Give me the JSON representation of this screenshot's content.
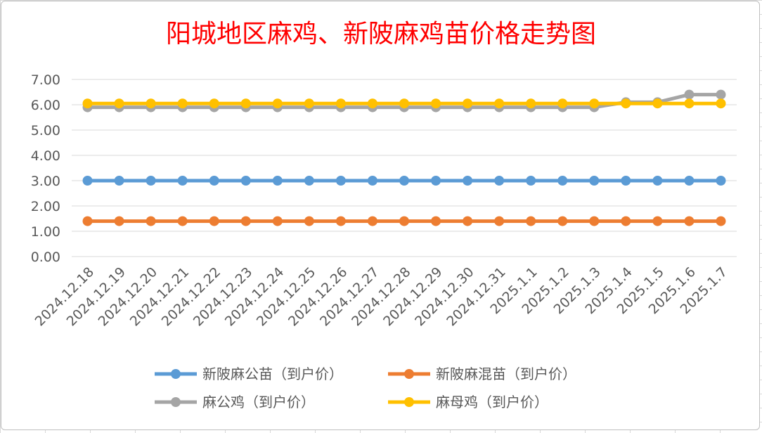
{
  "chart_data": {
    "type": "line",
    "title": "阳城地区麻鸡、新陂麻鸡苗价格走势图",
    "title_color": "#ff0000",
    "categories": [
      "2024.12.18",
      "2024.12.19",
      "2024.12.20",
      "2024.12.21",
      "2024.12.22",
      "2024.12.23",
      "2024.12.24",
      "2024.12.25",
      "2024.12.26",
      "2024.12.27",
      "2024.12.28",
      "2024.12.29",
      "2024.12.30",
      "2024.12.31",
      "2025.1.1",
      "2025.1.2",
      "2025.1.3",
      "2025.1.4",
      "2025.1.5",
      "2025.1.6",
      "2025.1.7"
    ],
    "ylim": [
      0,
      7
    ],
    "yticks": [
      "0.00",
      "1.00",
      "2.00",
      "3.00",
      "4.00",
      "5.00",
      "6.00",
      "7.00"
    ],
    "grid": true,
    "legend_position": "bottom",
    "series": [
      {
        "name": "新陂麻公苗（到户价）",
        "color": "#5b9bd5",
        "values": [
          3.0,
          3.0,
          3.0,
          3.0,
          3.0,
          3.0,
          3.0,
          3.0,
          3.0,
          3.0,
          3.0,
          3.0,
          3.0,
          3.0,
          3.0,
          3.0,
          3.0,
          3.0,
          3.0,
          3.0,
          3.0
        ]
      },
      {
        "name": "新陂麻混苗（到户价）",
        "color": "#ed7d31",
        "values": [
          1.4,
          1.4,
          1.4,
          1.4,
          1.4,
          1.4,
          1.4,
          1.4,
          1.4,
          1.4,
          1.4,
          1.4,
          1.4,
          1.4,
          1.4,
          1.4,
          1.4,
          1.4,
          1.4,
          1.4,
          1.4
        ]
      },
      {
        "name": "麻公鸡（到户价）",
        "color": "#a5a5a5",
        "values": [
          5.9,
          5.9,
          5.9,
          5.9,
          5.9,
          5.9,
          5.9,
          5.9,
          5.9,
          5.9,
          5.9,
          5.9,
          5.9,
          5.9,
          5.9,
          5.9,
          5.9,
          6.1,
          6.1,
          6.4,
          6.4
        ]
      },
      {
        "name": "麻母鸡（到户价）",
        "color": "#ffc000",
        "values": [
          6.05,
          6.05,
          6.05,
          6.05,
          6.05,
          6.05,
          6.05,
          6.05,
          6.05,
          6.05,
          6.05,
          6.05,
          6.05,
          6.05,
          6.05,
          6.05,
          6.05,
          6.05,
          6.05,
          6.05,
          6.05
        ]
      }
    ]
  }
}
